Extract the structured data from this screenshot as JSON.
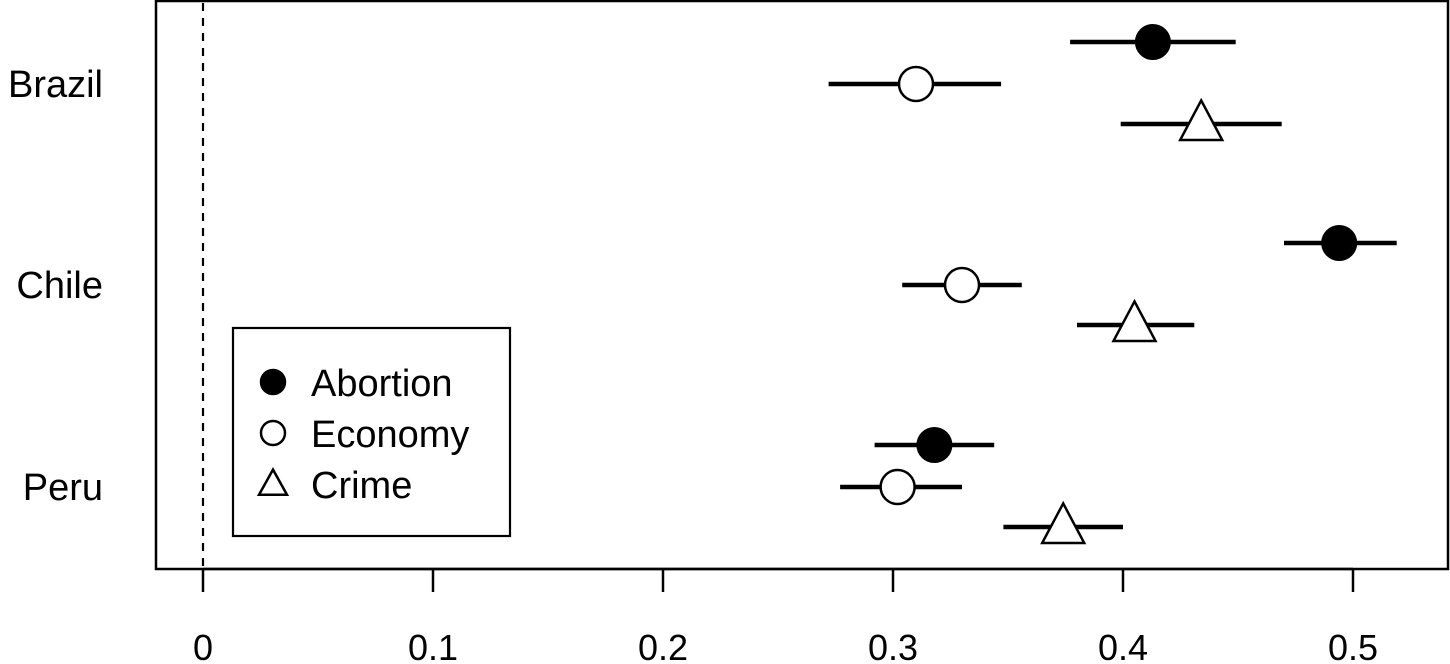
{
  "chart_data": {
    "type": "scatter",
    "orientation": "horizontal",
    "categories": [
      "Brazil",
      "Chile",
      "Peru"
    ],
    "xlim": [
      -0.02,
      0.54
    ],
    "xticks": [
      0,
      0.1,
      0.2,
      0.3,
      0.4,
      0.5
    ],
    "xtick_labels": [
      "0",
      "0.1",
      "0.2",
      "0.3",
      "0.4",
      "0.5"
    ],
    "reference_line": {
      "x": 0,
      "style": "dashed"
    },
    "grid": false,
    "legend": {
      "position": "bottom-left",
      "entries": [
        "Abortion",
        "Economy",
        "Crime"
      ]
    },
    "series": [
      {
        "name": "Abortion",
        "marker": "filled-circle",
        "color": "#000000",
        "points": [
          {
            "category": "Brazil",
            "estimate": 0.413,
            "lower": 0.377,
            "upper": 0.449
          },
          {
            "category": "Chile",
            "estimate": 0.494,
            "lower": 0.47,
            "upper": 0.519
          },
          {
            "category": "Peru",
            "estimate": 0.318,
            "lower": 0.292,
            "upper": 0.344
          }
        ]
      },
      {
        "name": "Economy",
        "marker": "open-circle",
        "color": "#000000",
        "points": [
          {
            "category": "Brazil",
            "estimate": 0.31,
            "lower": 0.272,
            "upper": 0.347
          },
          {
            "category": "Chile",
            "estimate": 0.33,
            "lower": 0.304,
            "upper": 0.356
          },
          {
            "category": "Peru",
            "estimate": 0.302,
            "lower": 0.277,
            "upper": 0.33
          }
        ]
      },
      {
        "name": "Crime",
        "marker": "open-triangle",
        "color": "#000000",
        "points": [
          {
            "category": "Brazil",
            "estimate": 0.434,
            "lower": 0.399,
            "upper": 0.469
          },
          {
            "category": "Chile",
            "estimate": 0.405,
            "lower": 0.38,
            "upper": 0.431
          },
          {
            "category": "Peru",
            "estimate": 0.374,
            "lower": 0.348,
            "upper": 0.4
          }
        ]
      }
    ]
  }
}
